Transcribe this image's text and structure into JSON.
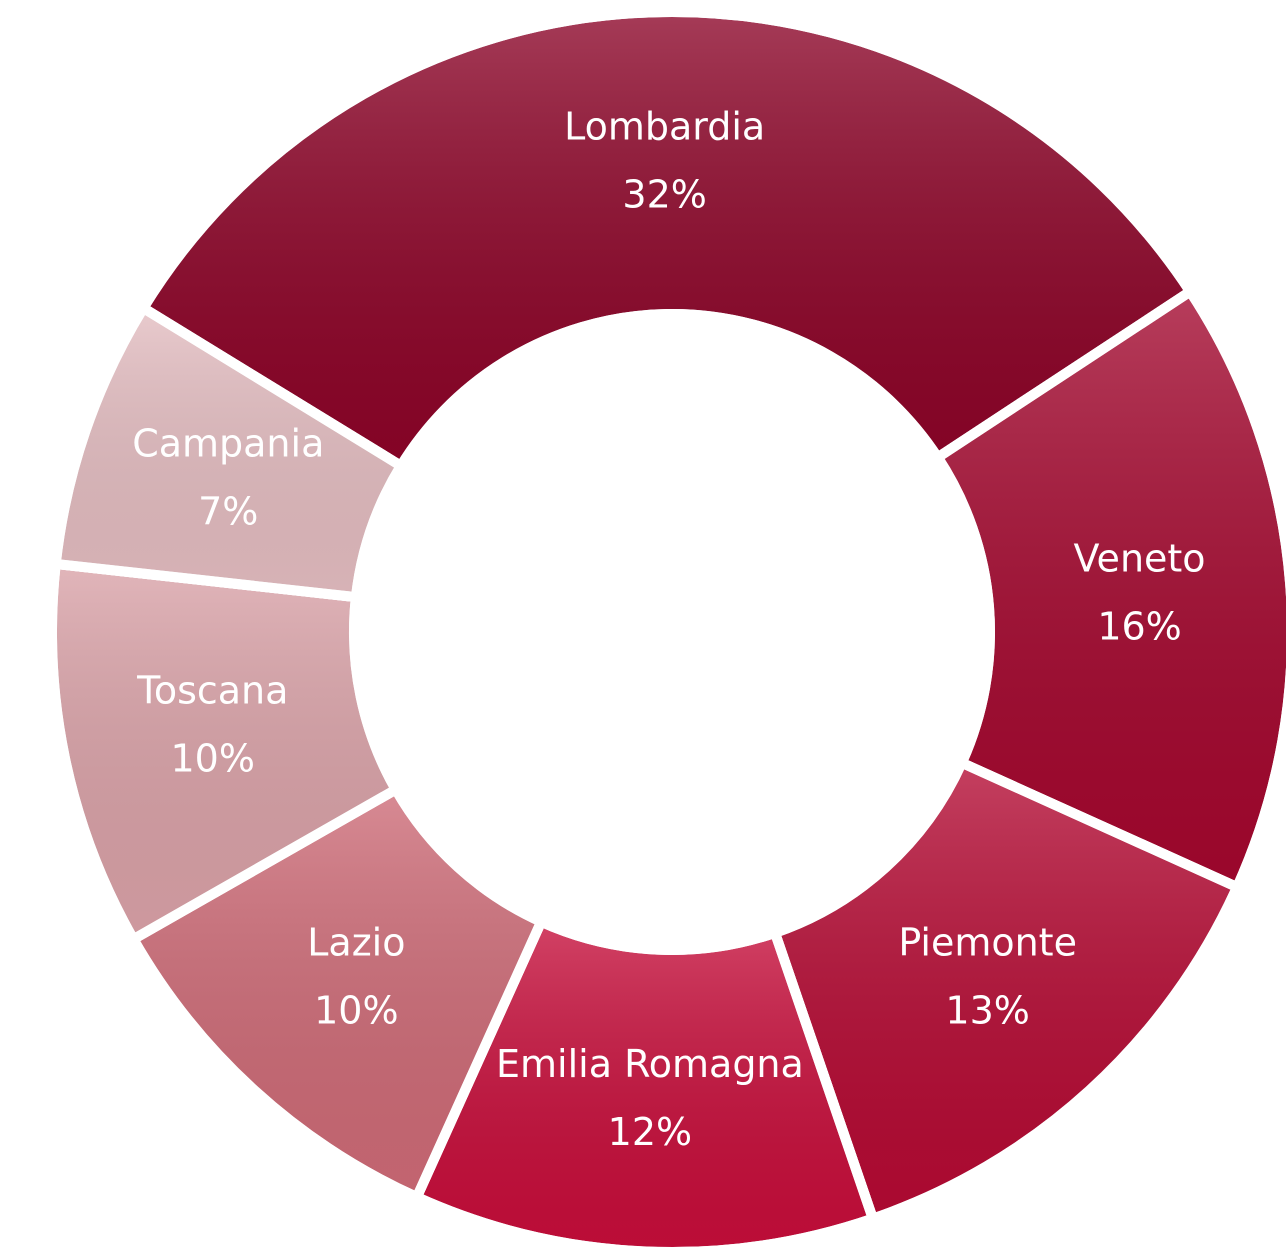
{
  "chart_data": {
    "type": "donut",
    "categories": [
      "Lombardia",
      "Veneto",
      "Piemonte",
      "Emilia Romagna",
      "Lazio",
      "Toscana",
      "Campania"
    ],
    "values": [
      32,
      16,
      13,
      12,
      10,
      10,
      7
    ],
    "value_labels": [
      "32%",
      "16%",
      "13%",
      "12%",
      "10%",
      "10%",
      "7%"
    ],
    "colors": [
      "#8c0428",
      "#a3072e",
      "#b40a33",
      "#c60d3a",
      "#cd6a76",
      "#d9a1a7",
      "#e3bcc0"
    ]
  }
}
